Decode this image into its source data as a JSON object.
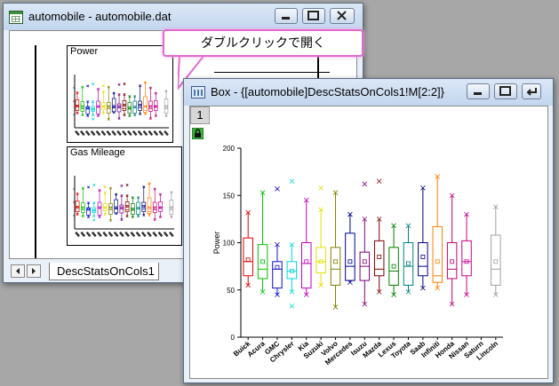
{
  "back_window": {
    "title": "automobile - automobile.dat",
    "panels": [
      {
        "title": "Power",
        "y_label": "Power"
      },
      {
        "title": "Gas Mileage",
        "y_label": "Gas Mileage"
      }
    ],
    "sheet_tab": "DescStatsOnCols1"
  },
  "callout": {
    "text": "ダブルクリックで開く",
    "border_color": "#e36ad0"
  },
  "front_window": {
    "title": "Box - {[automobile]DescStatsOnCols1!M[2:2]}",
    "layer_label": "1",
    "icons": [
      "lock-icon",
      "minimize-icon",
      "maximize-icon",
      "rescale-icon"
    ]
  },
  "chart_data": {
    "type": "box",
    "ylabel": "Power",
    "ylim": [
      0,
      200
    ],
    "yticks": [
      0,
      50,
      100,
      150,
      200
    ],
    "categories": [
      "Buick",
      "Acura",
      "GMC",
      "Chrysler",
      "Kia",
      "Suzuki",
      "Volvo",
      "Mercedes",
      "Isuzu",
      "Mazda",
      "Lexus",
      "Toyota",
      "Saab",
      "Infiniti",
      "Honda",
      "Nissan",
      "Saturn",
      "Lincoln"
    ],
    "colors": [
      "#e00000",
      "#00c000",
      "#1010d0",
      "#00d8d8",
      "#c000c0",
      "#e0e000",
      "#808000",
      "#000090",
      "#800080",
      "#800000",
      "#008000",
      "#008080",
      "#000080",
      "#ff8000",
      "#c00070",
      "#c80090",
      "#5020c0",
      "#a0a0a0"
    ],
    "boxes": [
      {
        "min": 55,
        "q1": 65,
        "median": 80,
        "q3": 105,
        "max": 132,
        "mean": 82,
        "outliers": []
      },
      {
        "min": 48,
        "q1": 62,
        "median": 72,
        "q3": 98,
        "max": 153,
        "mean": 80,
        "outliers": []
      },
      {
        "min": 45,
        "q1": 52,
        "median": 72,
        "q3": 80,
        "max": 98,
        "mean": 74,
        "outliers": [
          157
        ]
      },
      {
        "min": 48,
        "q1": 62,
        "median": 70,
        "q3": 80,
        "max": 98,
        "mean": 70,
        "outliers": [
          165,
          33
        ]
      },
      {
        "min": 45,
        "q1": 52,
        "median": 78,
        "q3": 100,
        "max": 145,
        "mean": 80,
        "outliers": []
      },
      {
        "min": 55,
        "q1": 68,
        "median": 80,
        "q3": 95,
        "max": 135,
        "mean": 80,
        "outliers": [
          158
        ]
      },
      {
        "min": 32,
        "q1": 55,
        "median": 72,
        "q3": 95,
        "max": 153,
        "mean": 80,
        "outliers": []
      },
      {
        "min": 58,
        "q1": 60,
        "median": 75,
        "q3": 110,
        "max": 130,
        "mean": 80,
        "outliers": []
      },
      {
        "min": 35,
        "q1": 60,
        "median": 75,
        "q3": 90,
        "max": 125,
        "mean": 80,
        "outliers": [
          162
        ]
      },
      {
        "min": 48,
        "q1": 65,
        "median": 72,
        "q3": 102,
        "max": 125,
        "mean": 85,
        "outliers": [
          165
        ]
      },
      {
        "min": 45,
        "q1": 55,
        "median": 70,
        "q3": 95,
        "max": 118,
        "mean": 75,
        "outliers": []
      },
      {
        "min": 48,
        "q1": 55,
        "median": 75,
        "q3": 100,
        "max": 118,
        "mean": 78,
        "outliers": []
      },
      {
        "min": 52,
        "q1": 65,
        "median": 75,
        "q3": 100,
        "max": 158,
        "mean": 85,
        "outliers": []
      },
      {
        "min": 52,
        "q1": 58,
        "median": 65,
        "q3": 117,
        "max": 170,
        "mean": 80,
        "outliers": []
      },
      {
        "min": 35,
        "q1": 62,
        "median": 72,
        "q3": 100,
        "max": 150,
        "mean": 80,
        "outliers": []
      },
      {
        "min": 45,
        "q1": 65,
        "median": 80,
        "q3": 102,
        "max": 130,
        "mean": 80,
        "outliers": []
      },
      null,
      {
        "min": 45,
        "q1": 55,
        "median": 72,
        "q3": 108,
        "max": 138,
        "mean": 80,
        "outliers": []
      }
    ]
  }
}
